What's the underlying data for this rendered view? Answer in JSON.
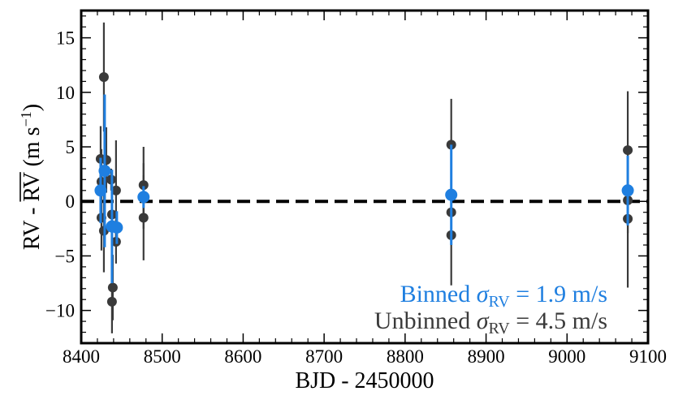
{
  "chart_data": {
    "type": "scatter",
    "xlabel": "BJD - 2450000",
    "ylabel": "RV - RV (m s−1)",
    "ylabel_parts": {
      "pre": "RV - ",
      "over": "RV",
      "post": " (m s",
      "sup": "−1",
      "close": ")"
    },
    "xlim": [
      8400,
      9100
    ],
    "ylim": [
      -13,
      17.5
    ],
    "xticks": [
      8400,
      8500,
      8600,
      8700,
      8800,
      8900,
      9000,
      9100
    ],
    "xtick_labels": [
      "8400",
      "8500",
      "8600",
      "8700",
      "8800",
      "8900",
      "9000",
      "9100"
    ],
    "yticks": [
      -10,
      -5,
      0,
      5,
      10,
      15
    ],
    "ytick_labels": [
      "−10",
      "−5",
      "0",
      "5",
      "10",
      "15"
    ],
    "zero_line": 0,
    "grid": false,
    "legend_position": "bottom-right",
    "annotations": [
      {
        "prefix": "Binned ",
        "sigma": "σ",
        "sub": "RV",
        "suffix": " = 1.9 m/s",
        "color": "#1f7fe0"
      },
      {
        "prefix": "Unbinned ",
        "sigma": "σ",
        "sub": "RV",
        "suffix": " = 4.5 m/s",
        "color": "#3a3a3a"
      }
    ],
    "series": [
      {
        "role": "unbinned",
        "color": "#3a3a3a",
        "points": [
          {
            "x": 8424,
            "y": 3.9,
            "err": 3.0
          },
          {
            "x": 8425,
            "y": 1.8,
            "err": 3.0
          },
          {
            "x": 8425,
            "y": -1.5,
            "err": 3.0
          },
          {
            "x": 8428,
            "y": 11.4,
            "err": 5.0
          },
          {
            "x": 8428,
            "y": -2.7,
            "err": 3.8
          },
          {
            "x": 8431,
            "y": 3.8,
            "err": 3.0
          },
          {
            "x": 8437,
            "y": 2.0,
            "err": 1.0
          },
          {
            "x": 8438,
            "y": -1.2,
            "err": 3.0
          },
          {
            "x": 8439,
            "y": -7.9,
            "err": 3.0
          },
          {
            "x": 8438,
            "y": -9.2,
            "err": 2.9
          },
          {
            "x": 8443,
            "y": 1.0,
            "err": 4.6
          },
          {
            "x": 8443,
            "y": -3.7,
            "err": 2.0
          },
          {
            "x": 8477,
            "y": 1.5,
            "err": 3.5
          },
          {
            "x": 8477,
            "y": 0.5,
            "err": 3.0
          },
          {
            "x": 8477,
            "y": -1.5,
            "err": 3.9
          },
          {
            "x": 8857,
            "y": 5.2,
            "err": 4.2
          },
          {
            "x": 8857,
            "y": -1.0,
            "err": 3.0
          },
          {
            "x": 8857,
            "y": -3.1,
            "err": 4.6
          },
          {
            "x": 9075,
            "y": 4.7,
            "err": 5.4
          },
          {
            "x": 9075,
            "y": 0.1,
            "err": 3.0
          },
          {
            "x": 9075,
            "y": -1.6,
            "err": 6.3
          }
        ]
      },
      {
        "role": "binned",
        "color": "#1f7fe0",
        "points": [
          {
            "x": 8424,
            "y": 1.0,
            "err": 3.0
          },
          {
            "x": 8429,
            "y": 2.8,
            "err": 7.0
          },
          {
            "x": 8438,
            "y": -2.3,
            "err": 5.2
          },
          {
            "x": 8444,
            "y": -2.4,
            "err": 1.5
          },
          {
            "x": 8477,
            "y": 0.4,
            "err": 1.0
          },
          {
            "x": 8857,
            "y": 0.6,
            "err": 4.6
          },
          {
            "x": 9075,
            "y": 1.0,
            "err": 3.2
          }
        ]
      }
    ]
  }
}
